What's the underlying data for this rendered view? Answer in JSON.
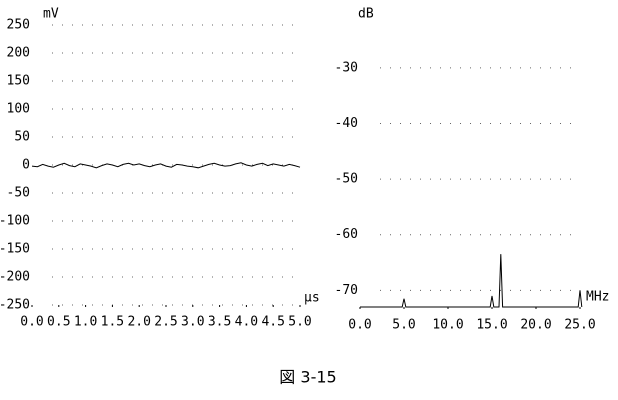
{
  "caption": "図 3-15",
  "chart_data": [
    {
      "type": "line",
      "y_unit": "mV",
      "x_unit": "μs",
      "x": [
        0,
        0.1,
        0.2,
        0.3,
        0.4,
        0.5,
        0.6,
        0.7,
        0.8,
        0.9,
        1.0,
        1.1,
        1.2,
        1.3,
        1.4,
        1.5,
        1.6,
        1.7,
        1.8,
        1.9,
        2.0,
        2.1,
        2.2,
        2.3,
        2.4,
        2.5,
        2.6,
        2.7,
        2.8,
        2.9,
        3.0,
        3.1,
        3.2,
        3.3,
        3.4,
        3.5,
        3.6,
        3.7,
        3.8,
        3.9,
        4.0,
        4.1,
        4.2,
        4.3,
        4.4,
        4.5,
        4.6,
        4.7,
        4.8,
        4.9,
        5.0
      ],
      "series": [
        {
          "color": "#000000",
          "values": [
            -2,
            -3,
            1,
            -2,
            -4,
            0,
            3,
            -1,
            -3,
            2,
            0,
            -2,
            -5,
            -1,
            2,
            0,
            -3,
            1,
            3,
            0,
            2,
            -1,
            -3,
            0,
            2,
            -2,
            -4,
            1,
            0,
            -2,
            -3,
            -5,
            -2,
            1,
            3,
            0,
            -2,
            -1,
            2,
            4,
            0,
            -2,
            1,
            3,
            -1,
            2,
            0,
            -2,
            1,
            -1,
            -4
          ]
        }
      ],
      "xlim": [
        0,
        5
      ],
      "ylim": [
        -250,
        250
      ],
      "xticks": [
        {
          "value": 0,
          "label": "0.0"
        },
        {
          "value": 0.5,
          "label": "0.5"
        },
        {
          "value": 1,
          "label": "1.0"
        },
        {
          "value": 1.5,
          "label": "1.5"
        },
        {
          "value": 2,
          "label": "2.0"
        },
        {
          "value": 2.5,
          "label": "2.5"
        },
        {
          "value": 3,
          "label": "3.0"
        },
        {
          "value": 3.5,
          "label": "3.5"
        },
        {
          "value": 4,
          "label": "4.0"
        },
        {
          "value": 4.5,
          "label": "4.5"
        },
        {
          "value": 5,
          "label": "5.0"
        }
      ],
      "yticks": [
        250,
        200,
        150,
        100,
        50,
        0,
        -50,
        -100,
        -150,
        -200,
        -250
      ],
      "grid": true
    },
    {
      "type": "line",
      "y_unit": "dB",
      "x_unit": "MHz",
      "x": [
        0,
        4.8,
        5,
        5.2,
        14.8,
        15,
        15.2,
        15.8,
        16,
        16.2,
        24.8,
        25,
        25.2
      ],
      "series": [
        {
          "color": "#000000",
          "values": [
            -73,
            -73,
            -71.5,
            -73,
            -73,
            -71,
            -73,
            -73,
            -63.5,
            -73,
            -73,
            -70,
            -73
          ]
        }
      ],
      "xlim": [
        0,
        25
      ],
      "ylim": [
        -73,
        -25
      ],
      "xticks": [
        {
          "value": 0,
          "label": "0.0"
        },
        {
          "value": 5,
          "label": "5.0"
        },
        {
          "value": 10,
          "label": "10.0"
        },
        {
          "value": 15,
          "label": "15.0"
        },
        {
          "value": 20,
          "label": "20.0"
        },
        {
          "value": 25,
          "label": "25.0"
        }
      ],
      "yticks": [
        -30,
        -40,
        -50,
        -60,
        -70
      ],
      "grid": true
    }
  ]
}
